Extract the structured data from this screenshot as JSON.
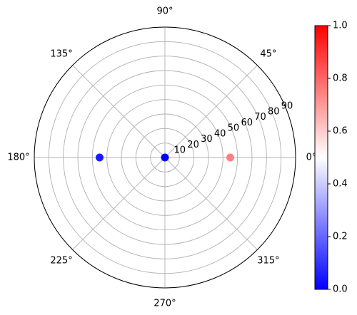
{
  "chart_data": {
    "type": "scatter",
    "projection": "polar",
    "title": "",
    "theta_unit": "degrees",
    "theta_ticks": [
      0,
      45,
      90,
      135,
      180,
      225,
      270,
      315
    ],
    "theta_tick_labels": [
      "0°",
      "45°",
      "90°",
      "135°",
      "180°",
      "225°",
      "270°",
      "315°"
    ],
    "r_ticks": [
      10,
      20,
      30,
      40,
      50,
      60,
      70,
      80,
      90
    ],
    "r_tick_labels": [
      "10",
      "20",
      "30",
      "40",
      "50",
      "60",
      "70",
      "80",
      "90"
    ],
    "rlim": [
      0,
      90
    ],
    "r_label_angle_deg": 22.5,
    "grid": true,
    "points": [
      {
        "theta": 0,
        "r": 0,
        "value": 0.0
      },
      {
        "theta": 0,
        "r": 45,
        "value": 0.75
      },
      {
        "theta": 180,
        "r": 45,
        "value": 0.05
      }
    ],
    "colormap": "bwr",
    "colorbar": {
      "vmin": 0.0,
      "vmax": 1.0,
      "ticks": [
        0.0,
        0.2,
        0.4,
        0.6,
        0.8,
        1.0
      ],
      "tick_labels": [
        "0.0",
        "0.2",
        "0.4",
        "0.6",
        "0.8",
        "1.0"
      ],
      "position": "right"
    },
    "colors": {
      "grid": "#b0b0b0",
      "spine": "#000000",
      "low": "#0000ff",
      "mid": "#ffffff",
      "high": "#ff0000"
    }
  }
}
